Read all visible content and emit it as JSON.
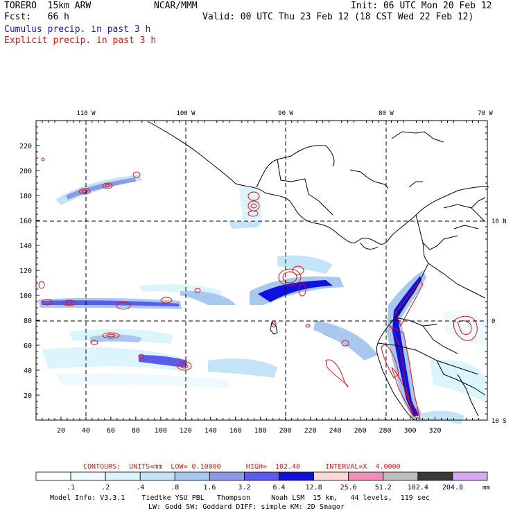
{
  "header": {
    "model": "TORERO  15km ARW",
    "org": "NCAR/MMM",
    "init": "Init: 06 UTC Mon 20 Feb 12",
    "fcst": "Fcst:   66 h",
    "valid": "Valid: 00 UTC Thu 23 Feb 12 (18 CST Wed 22 Feb 12)",
    "legend_cumulus": "Cumulus precip. in past 3 h",
    "legend_explicit": "Explicit precip. in past 3 h"
  },
  "colors": {
    "cumulus_text": "#1a1aa8",
    "explicit_text": "#e01010",
    "contour": "#e01010"
  },
  "map": {
    "lon_labels": [
      "110 W",
      "100 W",
      "90 W",
      "80 W",
      "70 W"
    ],
    "lat_labels": [
      "10 N",
      "0",
      "10 S"
    ],
    "x_ticks": [
      "20",
      "40",
      "60",
      "80",
      "100",
      "120",
      "140",
      "160",
      "180",
      "200",
      "220",
      "240",
      "260",
      "280",
      "300",
      "320"
    ],
    "y_ticks": [
      "20",
      "40",
      "60",
      "80",
      "100",
      "120",
      "140",
      "160",
      "180",
      "200",
      "220"
    ],
    "grid": true
  },
  "contours_line": "CONTOURS:  UNITS=mm  LOW= 0.10000      HIGH=  102.40      INTERVAL=X  4.0000",
  "colorbar": {
    "labels": [
      ".1",
      ".2",
      ".4",
      ".8",
      "1.6",
      "3.2",
      "6.4",
      "12.8",
      "25.6",
      "51.2",
      "102.4",
      "204.8"
    ],
    "unit": "mm",
    "colors": [
      "#ffffff",
      "#eefaff",
      "#dcf4fc",
      "#c2e4f6",
      "#a8c8f0",
      "#8c9ae8",
      "#5a5af0",
      "#1010e0",
      "#fcd8d8",
      "#f090b8",
      "#bdbdbd",
      "#3a3a3a",
      "#d6a8f2"
    ]
  },
  "footer": {
    "line1": "Model Info: V3.3.1    Tiedtke YSU PBL   Thompson     Noah LSM  15 km,   44 levels,  119 sec",
    "line2": "LW: Godd SW: Goddard DIFF: simple KM: 2D Smagor"
  }
}
